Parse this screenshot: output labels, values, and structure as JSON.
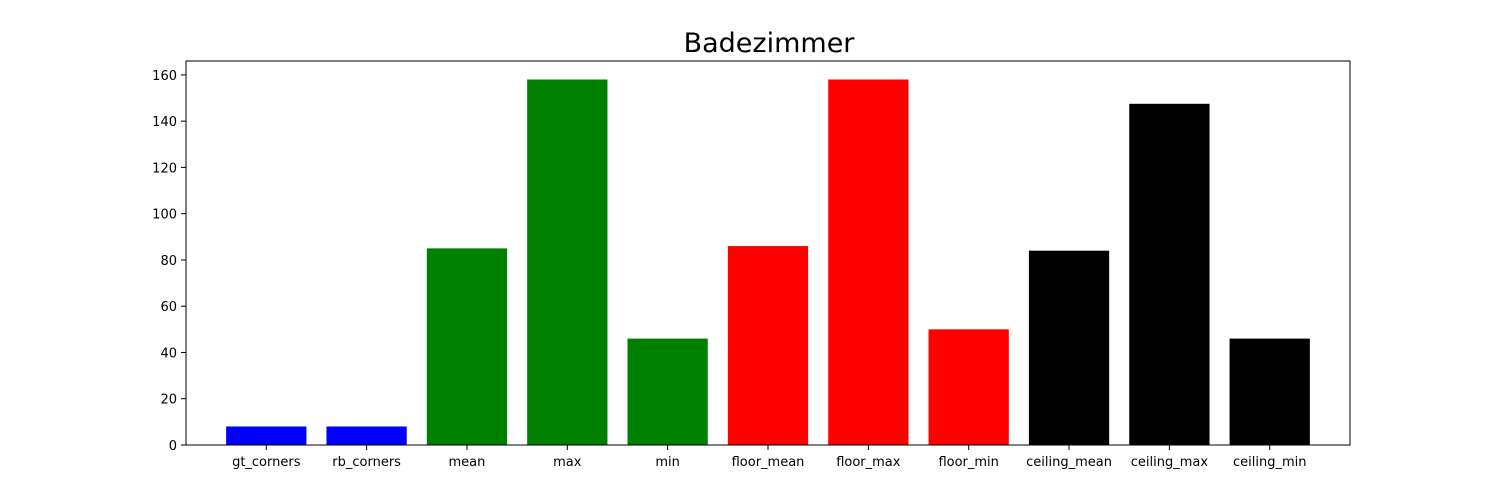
{
  "chart_data": {
    "type": "bar",
    "title": "Badezimmer",
    "xlabel": "",
    "ylabel": "",
    "categories": [
      "gt_corners",
      "rb_corners",
      "mean",
      "max",
      "min",
      "floor_mean",
      "floor_max",
      "floor_min",
      "ceiling_mean",
      "ceiling_max",
      "ceiling_min"
    ],
    "values": [
      8,
      8,
      85,
      158,
      46,
      86,
      158,
      50,
      84,
      147.5,
      46
    ],
    "colors": [
      "#0000ff",
      "#0000ff",
      "#008000",
      "#008000",
      "#008000",
      "#ff0000",
      "#ff0000",
      "#ff0000",
      "#000000",
      "#000000",
      "#000000"
    ],
    "ylim": [
      0,
      166
    ],
    "yticks": [
      0,
      20,
      40,
      60,
      80,
      100,
      120,
      140,
      160
    ],
    "grid": false,
    "legend": "none"
  }
}
